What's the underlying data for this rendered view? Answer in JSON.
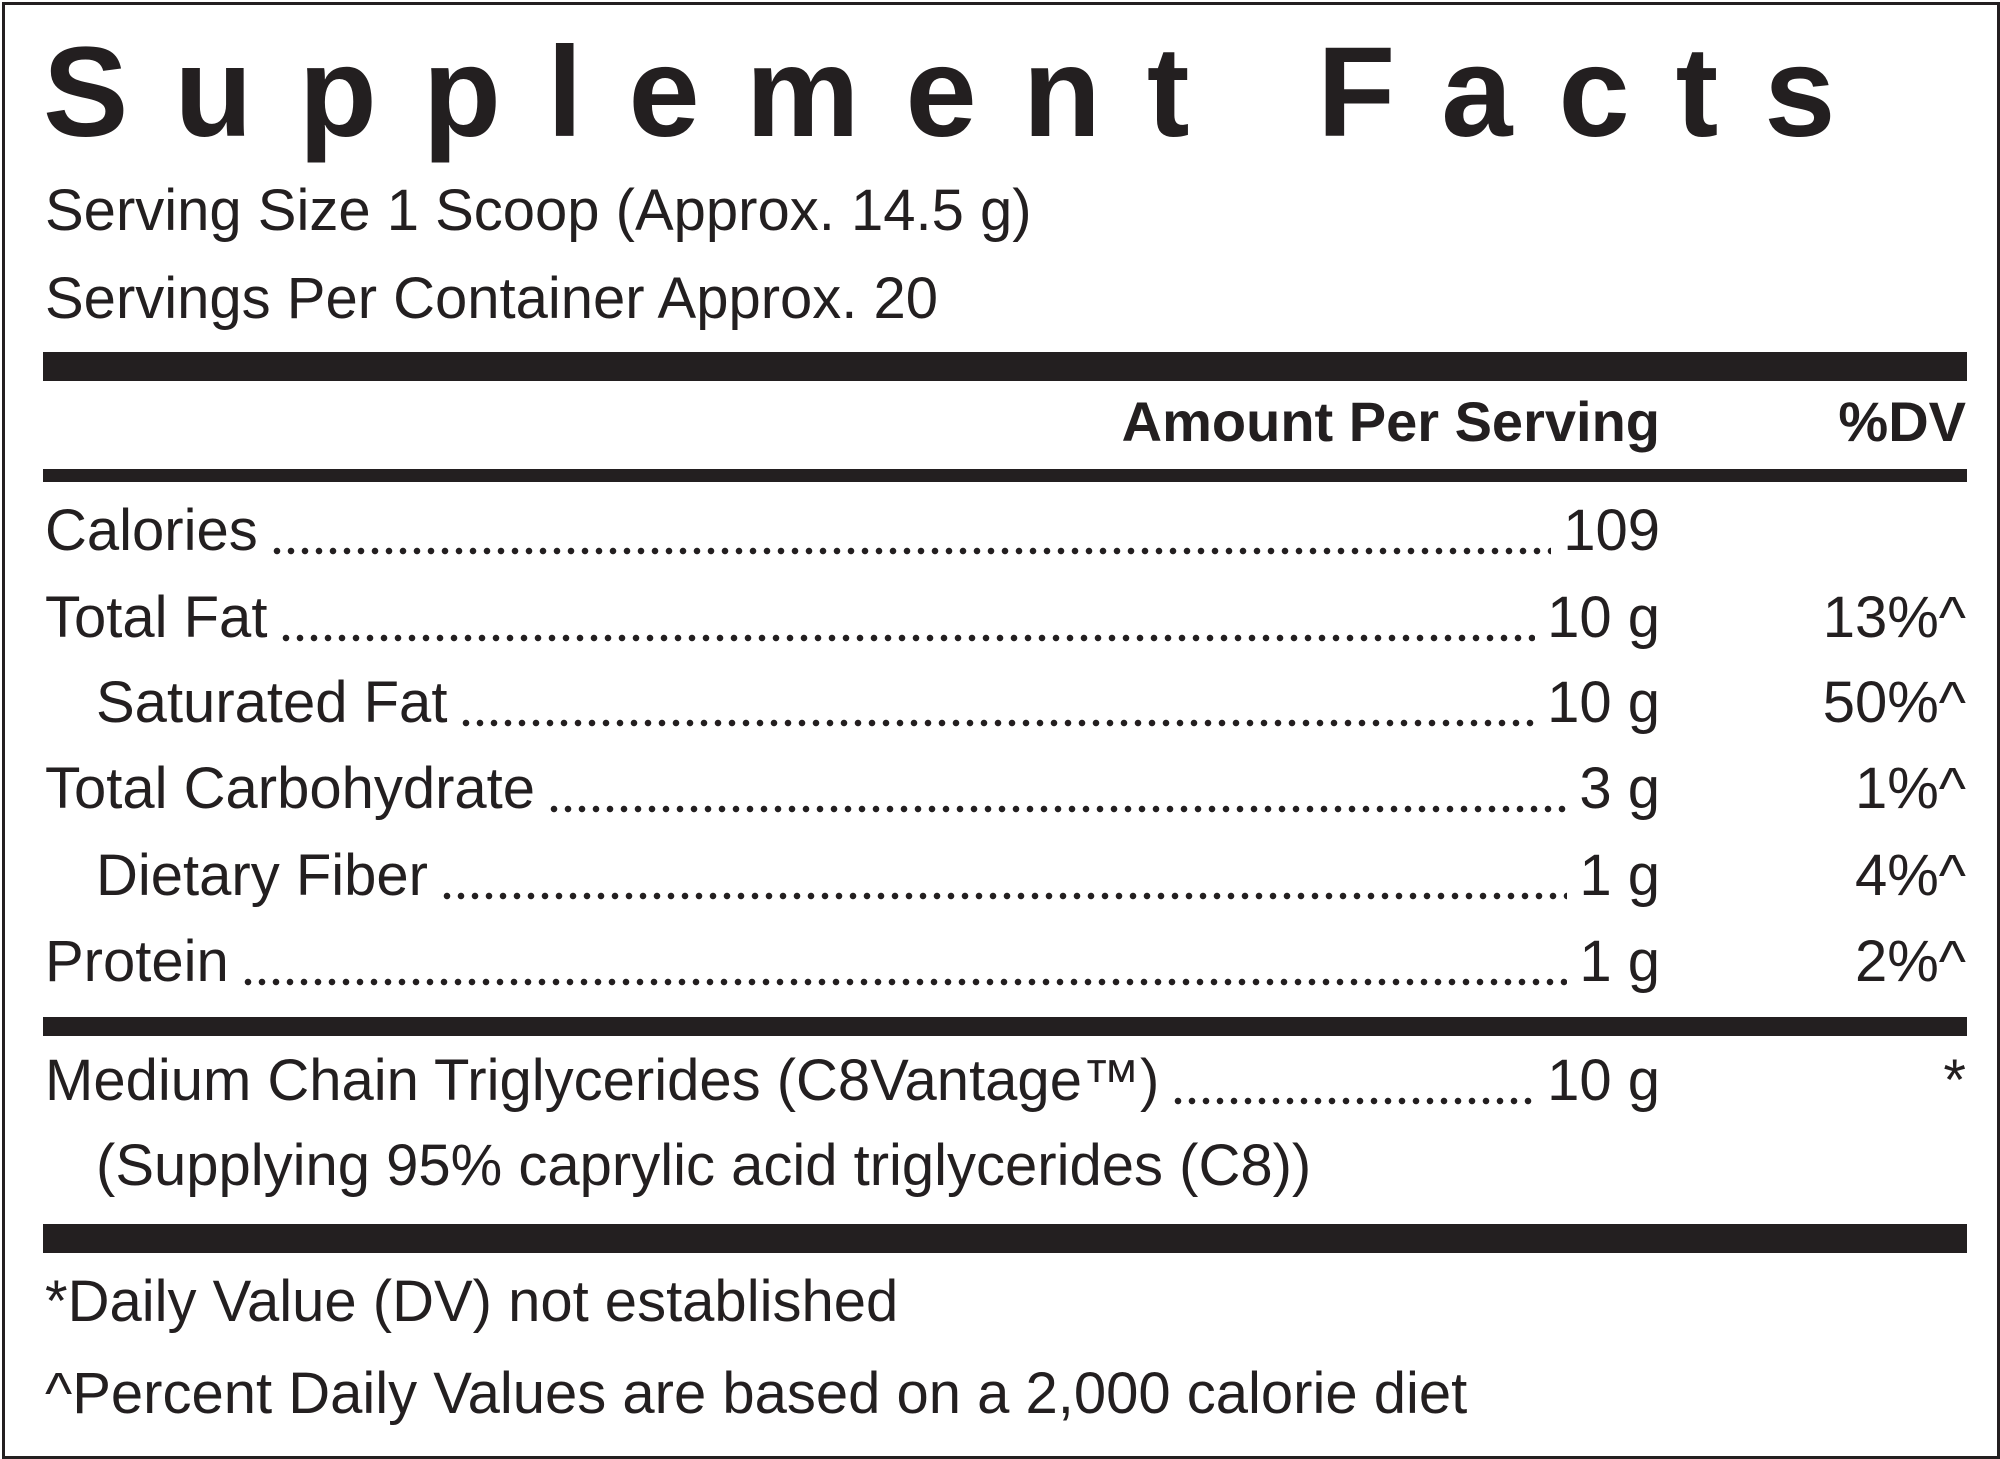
{
  "title": "Supplement Facts",
  "serving_size": "Serving Size 1 Scoop (Approx. 14.5 g)",
  "servings_per_container": "Servings Per Container Approx. 20",
  "header": {
    "amount": "Amount Per Serving",
    "dv": "%DV"
  },
  "rows": [
    {
      "name": "Calories",
      "amount": "109",
      "dv": null,
      "indent": false
    },
    {
      "name": "Total Fat",
      "amount": "10 g",
      "dv": "13%^",
      "indent": false
    },
    {
      "name": "Saturated Fat",
      "amount": "10 g",
      "dv": "50%^",
      "indent": true
    },
    {
      "name": "Total Carbohydrate",
      "amount": "3 g",
      "dv": "1%^",
      "indent": false
    },
    {
      "name": "Dietary Fiber",
      "amount": "1 g",
      "dv": "4%^",
      "indent": true
    },
    {
      "name": "Protein",
      "amount": "1 g",
      "dv": "2%^",
      "indent": false
    }
  ],
  "mct": {
    "name": "Medium Chain Triglycerides (C8Vantage™)",
    "amount": "10 g",
    "dv": "*",
    "note": "(Supplying 95% caprylic acid triglycerides (C8))"
  },
  "footnotes": [
    "*Daily Value (DV) not established",
    "^Percent Daily Values are based on a 2,000 calorie diet"
  ]
}
